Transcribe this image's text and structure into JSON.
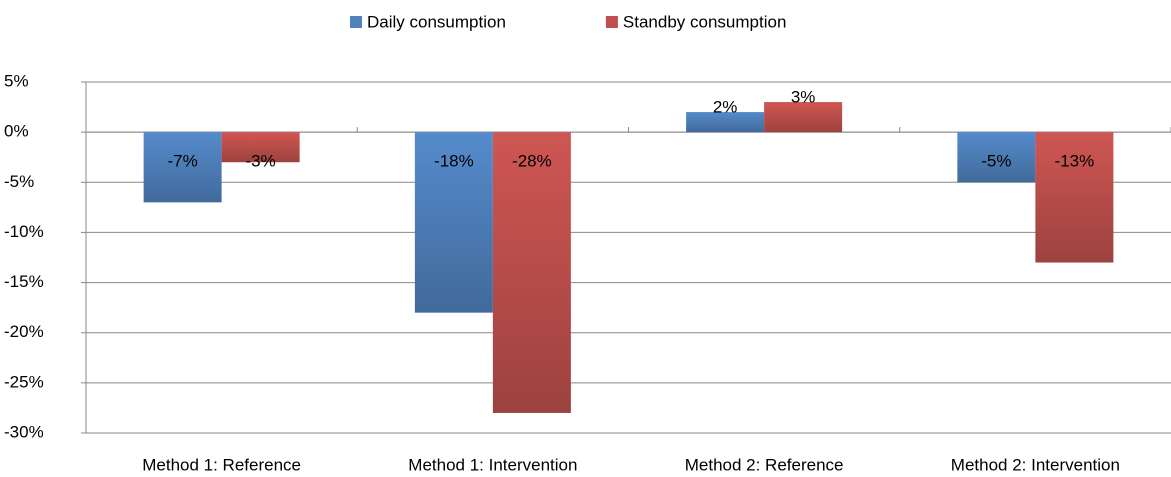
{
  "chart_data": {
    "type": "bar",
    "categories": [
      "Method 1: Reference",
      "Method 1: Intervention",
      "Method 2: Reference",
      "Method 2: Intervention"
    ],
    "series": [
      {
        "name": "Daily consumption",
        "color": "#4f81bd",
        "values": [
          -7,
          -18,
          2,
          -5
        ],
        "value_labels": [
          "-7%",
          "-18%",
          "2%",
          "-5%"
        ]
      },
      {
        "name": "Standby consumption",
        "color": "#c0504d",
        "values": [
          -3,
          -28,
          3,
          -13
        ],
        "value_labels": [
          "-3%",
          "-28%",
          "3%",
          "-13%"
        ]
      }
    ],
    "ylim": [
      -30,
      5
    ],
    "yticks": [
      {
        "value": -30,
        "label": "-30%"
      },
      {
        "value": -25,
        "label": "-25%"
      },
      {
        "value": -20,
        "label": "-20%"
      },
      {
        "value": -15,
        "label": "-15%"
      },
      {
        "value": -10,
        "label": "-10%"
      },
      {
        "value": -5,
        "label": "-5%"
      },
      {
        "value": 0,
        "label": "0%"
      },
      {
        "value": 5,
        "label": "5%"
      }
    ],
    "grid": true,
    "legend": "top"
  }
}
